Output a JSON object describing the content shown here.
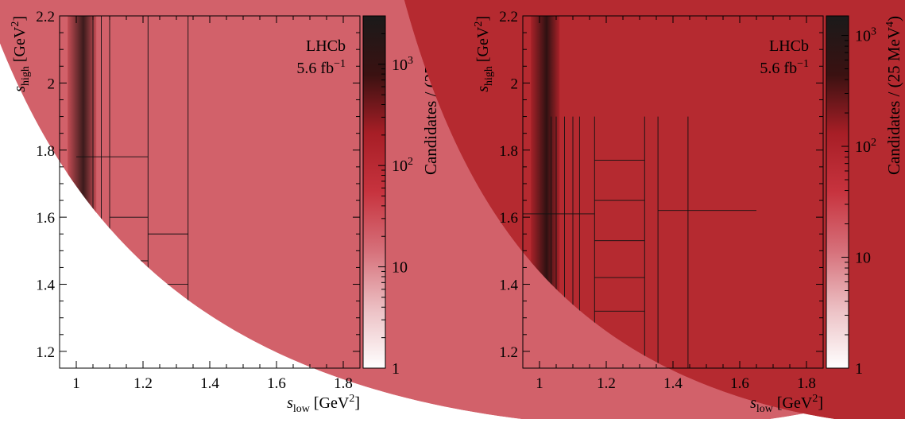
{
  "chart_data": [
    {
      "type": "heatmap",
      "panel": "left",
      "title": "",
      "xlabel": {
        "main": "s",
        "sub": "low",
        "unit": "[GeV",
        "sup": "2",
        "close": "]"
      },
      "ylabel": {
        "main": "s",
        "sub": "high",
        "unit": "[GeV",
        "sup": "2",
        "close": "]"
      },
      "xlim": [
        0.95,
        1.85
      ],
      "ylim": [
        1.15,
        2.2
      ],
      "x_ticks": [
        {
          "v": 1.0,
          "label": "1"
        },
        {
          "v": 1.2,
          "label": "1.2"
        },
        {
          "v": 1.4,
          "label": "1.4"
        },
        {
          "v": 1.6,
          "label": "1.6"
        },
        {
          "v": 1.8,
          "label": "1.8"
        }
      ],
      "y_ticks": [
        {
          "v": 1.2,
          "label": "1.2"
        },
        {
          "v": 1.4,
          "label": "1.4"
        },
        {
          "v": 1.6,
          "label": "1.6"
        },
        {
          "v": 1.8,
          "label": "1.8"
        },
        {
          "v": 2.0,
          "label": "2"
        },
        {
          "v": 2.2,
          "label": "2.2"
        }
      ],
      "experiment_label": "LHCb",
      "luminosity_label": {
        "value": "5.6 fb",
        "sup": "−1"
      },
      "colorbar": {
        "label": {
          "text": "Candidates / (25 MeV",
          "sup": "4",
          "close": ")"
        },
        "scale": "log",
        "range": [
          1,
          3000
        ],
        "ticks": [
          {
            "v": 1,
            "label": "1"
          },
          {
            "v": 10,
            "label": "10"
          },
          {
            "v": 100,
            "label": "10",
            "sup": "2"
          },
          {
            "v": 1000,
            "label": "10",
            "sup": "3"
          }
        ],
        "colors": [
          "#ffffff",
          "#ecc0c4",
          "#d6707a",
          "#c7333e",
          "#a71e26",
          "#3a1111",
          "#1a1a1a"
        ]
      },
      "phase_space": {
        "M": 2.43,
        "m1": 0.1396,
        "m2": 0.4937,
        "m3": 0.4937,
        "fill_color": "#d2616a",
        "dense_band": {
          "x_from": 0.974,
          "x_to": 1.06,
          "colors": [
            "#c24a52",
            "#2b1313"
          ]
        }
      },
      "bin_lines": [
        {
          "x1": 1.05,
          "x2": 1.05,
          "y1": 1.2,
          "y2": 2.2
        },
        {
          "x1": 1.075,
          "x2": 1.075,
          "y1": 1.2,
          "y2": 2.2
        },
        {
          "x1": 1.1,
          "x2": 1.1,
          "y1": 1.2,
          "y2": 2.2
        },
        {
          "x1": 1.215,
          "x2": 1.215,
          "y1": 1.2,
          "y2": 2.2
        },
        {
          "x1": 1.335,
          "x2": 1.335,
          "y1": 1.2,
          "y2": 2.2
        },
        {
          "x1": 1.0,
          "x2": 1.215,
          "y1": 1.78,
          "y2": 1.78
        },
        {
          "x1": 1.1,
          "x2": 1.215,
          "y1": 1.6,
          "y2": 1.6
        },
        {
          "x1": 1.1,
          "x2": 1.215,
          "y1": 1.47,
          "y2": 1.47
        },
        {
          "x1": 1.1,
          "x2": 1.215,
          "y1": 1.37,
          "y2": 1.37
        },
        {
          "x1": 1.215,
          "x2": 1.335,
          "y1": 1.55,
          "y2": 1.55
        },
        {
          "x1": 1.215,
          "x2": 1.335,
          "y1": 1.4,
          "y2": 1.4
        }
      ]
    },
    {
      "type": "heatmap",
      "panel": "right",
      "title": "",
      "xlabel": {
        "main": "s",
        "sub": "low",
        "unit": "[GeV",
        "sup": "2",
        "close": "]"
      },
      "ylabel": {
        "main": "s",
        "sub": "high",
        "unit": "[GeV",
        "sup": "2",
        "close": "]"
      },
      "xlim": [
        0.95,
        1.85
      ],
      "ylim": [
        1.15,
        2.2
      ],
      "x_ticks": [
        {
          "v": 1.0,
          "label": "1"
        },
        {
          "v": 1.2,
          "label": "1.2"
        },
        {
          "v": 1.4,
          "label": "1.4"
        },
        {
          "v": 1.6,
          "label": "1.6"
        },
        {
          "v": 1.8,
          "label": "1.8"
        }
      ],
      "y_ticks": [
        {
          "v": 1.2,
          "label": "1.2"
        },
        {
          "v": 1.4,
          "label": "1.4"
        },
        {
          "v": 1.6,
          "label": "1.6"
        },
        {
          "v": 1.8,
          "label": "1.8"
        },
        {
          "v": 2.0,
          "label": "2"
        },
        {
          "v": 2.2,
          "label": "2.2"
        }
      ],
      "experiment_label": "LHCb",
      "luminosity_label": {
        "value": "5.6 fb",
        "sup": "−1"
      },
      "colorbar": {
        "label": {
          "text": "Candidates / (25 MeV",
          "sup": "4",
          "close": ")"
        },
        "scale": "log",
        "range": [
          1,
          1500
        ],
        "ticks": [
          {
            "v": 1,
            "label": "1"
          },
          {
            "v": 10,
            "label": "10"
          },
          {
            "v": 100,
            "label": "10",
            "sup": "2"
          },
          {
            "v": 1000,
            "label": "10",
            "sup": "3"
          }
        ],
        "colors": [
          "#ffffff",
          "#ecc0c4",
          "#d6707a",
          "#c7333e",
          "#a71e26",
          "#3a1111",
          "#1a1a1a"
        ]
      },
      "phase_space": {
        "M": 2.2,
        "m1": 0.1396,
        "m2": 0.4937,
        "m3": 0.4937,
        "fill_color": "#b52a30",
        "dense_band": {
          "x_from": 0.974,
          "x_to": 1.06,
          "colors": [
            "#a82128",
            "#1f0e0e"
          ]
        }
      },
      "bin_lines": [
        {
          "x1": 1.035,
          "x2": 1.035,
          "y1": 1.15,
          "y2": 1.9
        },
        {
          "x1": 1.05,
          "x2": 1.05,
          "y1": 1.15,
          "y2": 1.9
        },
        {
          "x1": 1.075,
          "x2": 1.075,
          "y1": 1.15,
          "y2": 1.9
        },
        {
          "x1": 1.1,
          "x2": 1.1,
          "y1": 1.15,
          "y2": 1.9
        },
        {
          "x1": 1.12,
          "x2": 1.12,
          "y1": 1.15,
          "y2": 1.9
        },
        {
          "x1": 1.165,
          "x2": 1.165,
          "y1": 1.15,
          "y2": 1.9
        },
        {
          "x1": 1.315,
          "x2": 1.315,
          "y1": 1.15,
          "y2": 1.9
        },
        {
          "x1": 1.355,
          "x2": 1.355,
          "y1": 1.15,
          "y2": 1.9
        },
        {
          "x1": 1.445,
          "x2": 1.445,
          "y1": 1.15,
          "y2": 1.9
        },
        {
          "x1": 0.95,
          "x2": 1.165,
          "y1": 1.61,
          "y2": 1.61
        },
        {
          "x1": 1.165,
          "x2": 1.315,
          "y1": 1.77,
          "y2": 1.77
        },
        {
          "x1": 1.165,
          "x2": 1.315,
          "y1": 1.65,
          "y2": 1.65
        },
        {
          "x1": 1.165,
          "x2": 1.315,
          "y1": 1.53,
          "y2": 1.53
        },
        {
          "x1": 1.165,
          "x2": 1.315,
          "y1": 1.42,
          "y2": 1.42
        },
        {
          "x1": 1.165,
          "x2": 1.315,
          "y1": 1.32,
          "y2": 1.32
        },
        {
          "x1": 1.355,
          "x2": 1.65,
          "y1": 1.62,
          "y2": 1.62
        }
      ]
    }
  ]
}
